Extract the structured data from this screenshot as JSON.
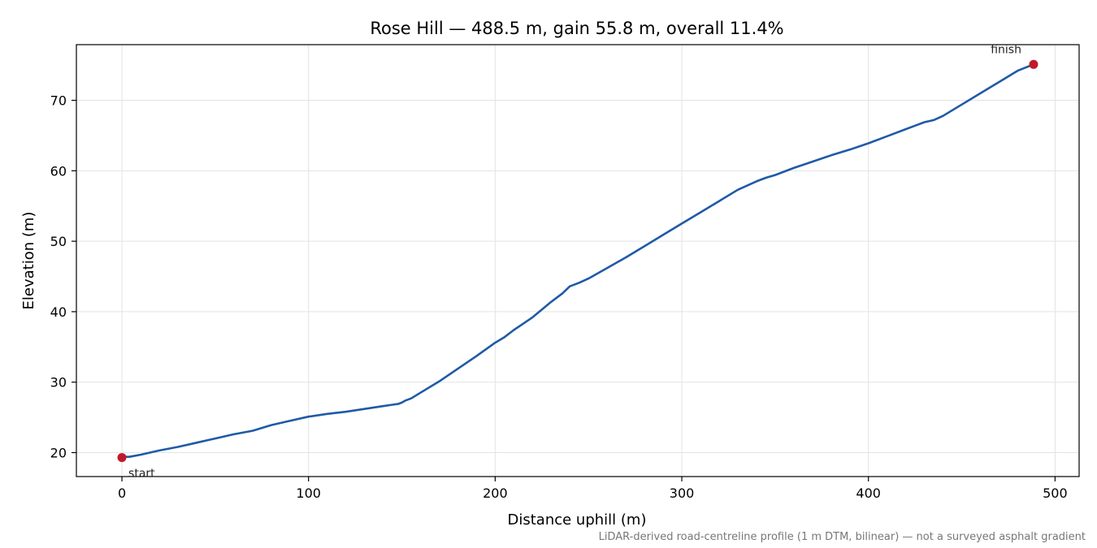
{
  "chart_data": {
    "type": "line",
    "title": "Rose Hill — 488.5 m, gain 55.8 m, overall 11.4%",
    "xlabel": "Distance uphill (m)",
    "ylabel": "Elevation (m)",
    "xlim": [
      -24.4,
      512.9
    ],
    "ylim": [
      16.6,
      77.9
    ],
    "xticks": [
      0,
      100,
      200,
      300,
      400,
      500
    ],
    "yticks": [
      20,
      30,
      40,
      50,
      60,
      70
    ],
    "grid": true,
    "footnote": "LiDAR-derived road-centreline profile (1 m DTM, bilinear) — not a surveyed asphalt gradient",
    "colors": {
      "line": "#1f5aa6",
      "marker": "#c0192a"
    },
    "series": [
      {
        "x": [
          0,
          2,
          4,
          6,
          10,
          15,
          20,
          30,
          40,
          50,
          60,
          70,
          75,
          80,
          90,
          100,
          110,
          120,
          130,
          140,
          145,
          148,
          150,
          152,
          155,
          160,
          170,
          180,
          190,
          200,
          205,
          210,
          220,
          230,
          236,
          240,
          245,
          250,
          260,
          270,
          280,
          290,
          300,
          310,
          320,
          330,
          340,
          345,
          350,
          360,
          370,
          380,
          390,
          400,
          410,
          420,
          425,
          430,
          435,
          440,
          450,
          460,
          470,
          480,
          488.5
        ],
        "y": [
          19.3,
          19.4,
          19.4,
          19.5,
          19.7,
          20.0,
          20.3,
          20.8,
          21.4,
          22.0,
          22.6,
          23.1,
          23.5,
          23.9,
          24.5,
          25.1,
          25.5,
          25.8,
          26.2,
          26.6,
          26.8,
          26.9,
          27.1,
          27.4,
          27.7,
          28.5,
          30.1,
          31.9,
          33.7,
          35.6,
          36.4,
          37.4,
          39.2,
          41.4,
          42.6,
          43.6,
          44.1,
          44.7,
          46.2,
          47.7,
          49.3,
          50.9,
          52.5,
          54.1,
          55.7,
          57.3,
          58.5,
          59.0,
          59.4,
          60.4,
          61.3,
          62.2,
          63.0,
          63.9,
          64.9,
          65.9,
          66.4,
          66.9,
          67.2,
          67.8,
          69.4,
          71.0,
          72.6,
          74.2,
          75.1
        ]
      }
    ],
    "points": [
      {
        "label": "start",
        "x": 0,
        "y": 19.3,
        "label_position": "below-right"
      },
      {
        "label": "finish",
        "x": 488.5,
        "y": 75.1,
        "label_position": "above-left"
      }
    ]
  }
}
